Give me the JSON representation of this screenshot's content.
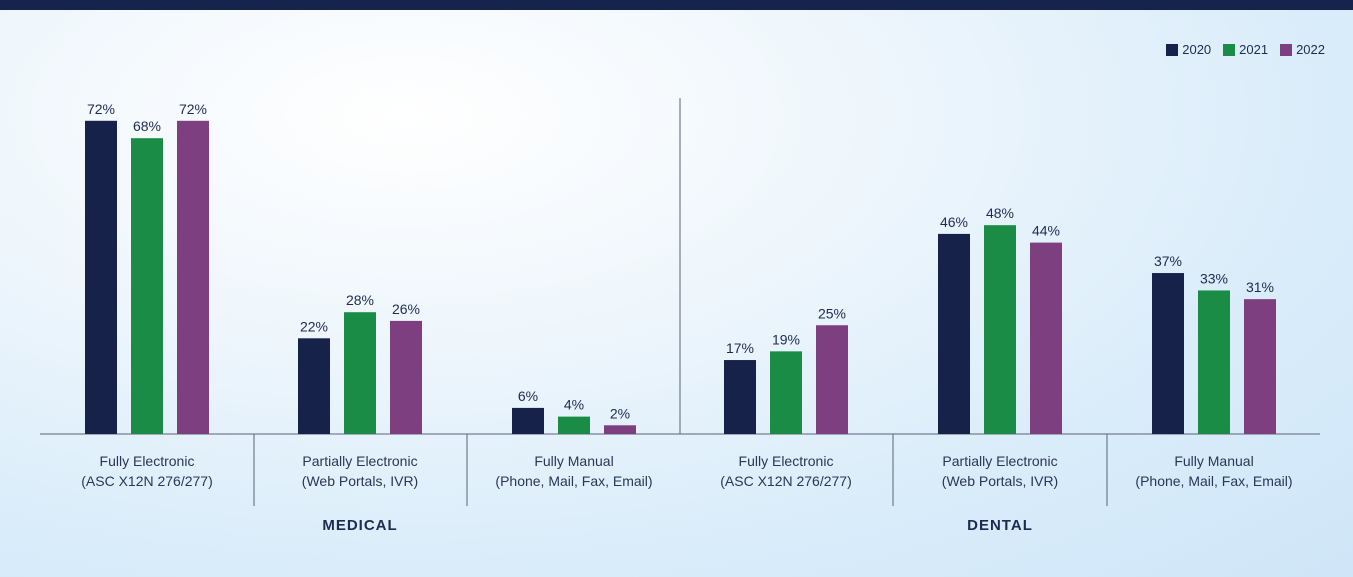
{
  "chart_data": {
    "type": "bar",
    "groups": [
      {
        "name": "MEDICAL",
        "categories": [
          {
            "line1": "Fully Electronic",
            "line2": "(ASC X12N 276/277)"
          },
          {
            "line1": "Partially Electronic",
            "line2": "(Web Portals, IVR)"
          },
          {
            "line1": "Fully Manual",
            "line2": "(Phone, Mail, Fax, Email)"
          }
        ],
        "series": [
          {
            "name": "2020",
            "values": [
              72,
              22,
              6
            ]
          },
          {
            "name": "2021",
            "values": [
              68,
              28,
              4
            ]
          },
          {
            "name": "2022",
            "values": [
              72,
              26,
              2
            ]
          }
        ]
      },
      {
        "name": "DENTAL",
        "categories": [
          {
            "line1": "Fully Electronic",
            "line2": "(ASC X12N 276/277)"
          },
          {
            "line1": "Partially Electronic",
            "line2": "(Web Portals, IVR)"
          },
          {
            "line1": "Fully Manual",
            "line2": "(Phone, Mail, Fax, Email)"
          }
        ],
        "series": [
          {
            "name": "2020",
            "values": [
              17,
              46,
              37
            ]
          },
          {
            "name": "2021",
            "values": [
              19,
              48,
              33
            ]
          },
          {
            "name": "2022",
            "values": [
              25,
              44,
              31
            ]
          }
        ]
      }
    ],
    "legend": [
      {
        "name": "2020",
        "color": "#16224a"
      },
      {
        "name": "2021",
        "color": "#1a8c45"
      },
      {
        "name": "2022",
        "color": "#7e3f80"
      }
    ],
    "value_suffix": "%",
    "ylim": [
      0,
      100
    ],
    "legend_position": "top-right"
  }
}
